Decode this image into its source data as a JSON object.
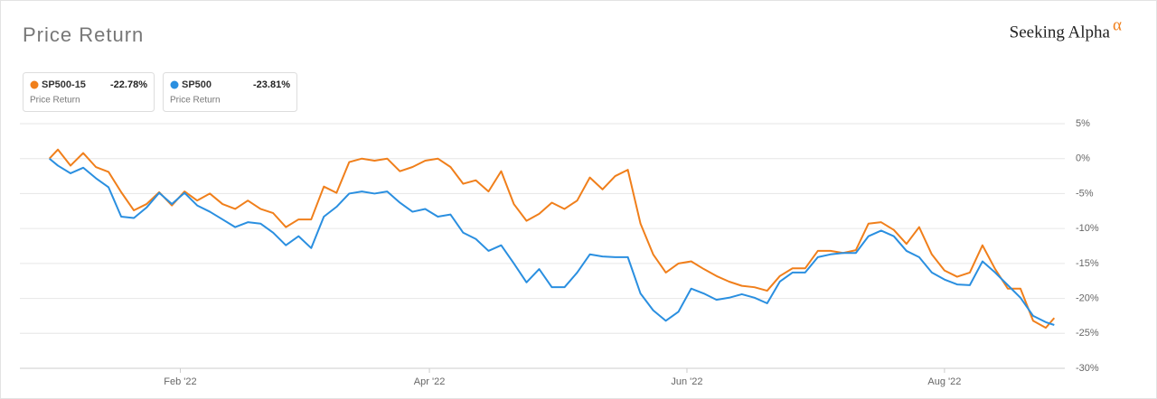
{
  "chart_data": {
    "type": "line",
    "title": "Price Return",
    "brand": "Seeking Alpha",
    "brand_mark": "α",
    "x": [
      1,
      3,
      6,
      9,
      12,
      15,
      18,
      21,
      24,
      27,
      30,
      33,
      36,
      39,
      42,
      45,
      48,
      51,
      54,
      57,
      60,
      63,
      66,
      69,
      72,
      75,
      78,
      81,
      84,
      87,
      90,
      93,
      96,
      99,
      102,
      105,
      108,
      111,
      114,
      117,
      120,
      123,
      126,
      129,
      132,
      135,
      138,
      141,
      144,
      147,
      150,
      153,
      156,
      159,
      162,
      165,
      168,
      171,
      174,
      177,
      180,
      183,
      186,
      189,
      192,
      195,
      198,
      201,
      204,
      207,
      210,
      213,
      216,
      219,
      222,
      225,
      228,
      231,
      234,
      237,
      239
    ],
    "series": [
      {
        "name": "SP500-15",
        "color": "#f07f1b",
        "subtitle": "Price Return",
        "total_return": -22.78,
        "total_return_label": "-22.78%",
        "values": [
          0,
          1.3,
          -1.0,
          0.8,
          -1.2,
          -1.9,
          -4.8,
          -7.4,
          -6.5,
          -4.8,
          -6.7,
          -4.7,
          -6.0,
          -5.0,
          -6.5,
          -7.2,
          -6.0,
          -7.2,
          -7.8,
          -9.8,
          -8.7,
          -8.7,
          -4.0,
          -4.9,
          -0.5,
          0,
          -0.3,
          0,
          -1.8,
          -1.2,
          -0.3,
          0,
          -1.2,
          -3.6,
          -3.1,
          -4.7,
          -1.8,
          -6.5,
          -8.9,
          -7.9,
          -6.3,
          -7.2,
          -6.0,
          -2.7,
          -4.4,
          -2.5,
          -1.6,
          -9.3,
          -13.7,
          -16.3,
          -15.0,
          -14.7,
          -15.8,
          -16.8,
          -17.6,
          -18.2,
          -18.4,
          -18.9,
          -16.8,
          -15.7,
          -15.7,
          -13.2,
          -13.2,
          -13.5,
          -13.1,
          -9.3,
          -9.1,
          -10.2,
          -12.2,
          -9.8,
          -13.7,
          -16.0,
          -16.9,
          -16.3,
          -12.4,
          -15.8,
          -18.6,
          -18.6,
          -23.2,
          -24.2,
          -22.8
        ]
      },
      {
        "name": "SP500",
        "color": "#2a8fe0",
        "subtitle": "Price Return",
        "total_return": -23.81,
        "total_return_label": "-23.81%",
        "values": [
          0,
          -1.0,
          -2.1,
          -1.3,
          -2.8,
          -4.1,
          -8.3,
          -8.5,
          -7.0,
          -4.9,
          -6.5,
          -4.9,
          -6.7,
          -7.6,
          -8.7,
          -9.8,
          -9.1,
          -9.3,
          -10.6,
          -12.4,
          -11.1,
          -12.8,
          -8.3,
          -6.9,
          -5.0,
          -4.7,
          -5.0,
          -4.7,
          -6.3,
          -7.6,
          -7.2,
          -8.3,
          -8.0,
          -10.6,
          -11.5,
          -13.2,
          -12.4,
          -15.0,
          -17.7,
          -15.8,
          -18.4,
          -18.4,
          -16.3,
          -13.7,
          -14.0,
          -14.1,
          -14.1,
          -19.3,
          -21.7,
          -23.2,
          -21.9,
          -18.6,
          -19.3,
          -20.2,
          -19.9,
          -19.4,
          -19.9,
          -20.7,
          -17.6,
          -16.3,
          -16.3,
          -14.1,
          -13.7,
          -13.5,
          -13.5,
          -11.1,
          -10.3,
          -11.1,
          -13.2,
          -14.1,
          -16.3,
          -17.3,
          -18.0,
          -18.1,
          -14.7,
          -16.3,
          -18.1,
          -19.9,
          -22.5,
          -23.4,
          -23.8
        ]
      }
    ],
    "xlim": [
      -6,
      241.5
    ],
    "xticks": [
      {
        "value": 32,
        "label": "Feb '22"
      },
      {
        "value": 91,
        "label": "Apr '22"
      },
      {
        "value": 152,
        "label": "Jun '22"
      },
      {
        "value": 213,
        "label": "Aug '22"
      }
    ],
    "ylim": [
      -30,
      5
    ],
    "yticks": [
      {
        "value": 5,
        "label": "5%"
      },
      {
        "value": 0,
        "label": "0%"
      },
      {
        "value": -5,
        "label": "-5%"
      },
      {
        "value": -10,
        "label": "-10%"
      },
      {
        "value": -15,
        "label": "-15%"
      },
      {
        "value": -20,
        "label": "-20%"
      },
      {
        "value": -25,
        "label": "-25%"
      },
      {
        "value": -30,
        "label": "-30%"
      }
    ],
    "grid": true
  }
}
